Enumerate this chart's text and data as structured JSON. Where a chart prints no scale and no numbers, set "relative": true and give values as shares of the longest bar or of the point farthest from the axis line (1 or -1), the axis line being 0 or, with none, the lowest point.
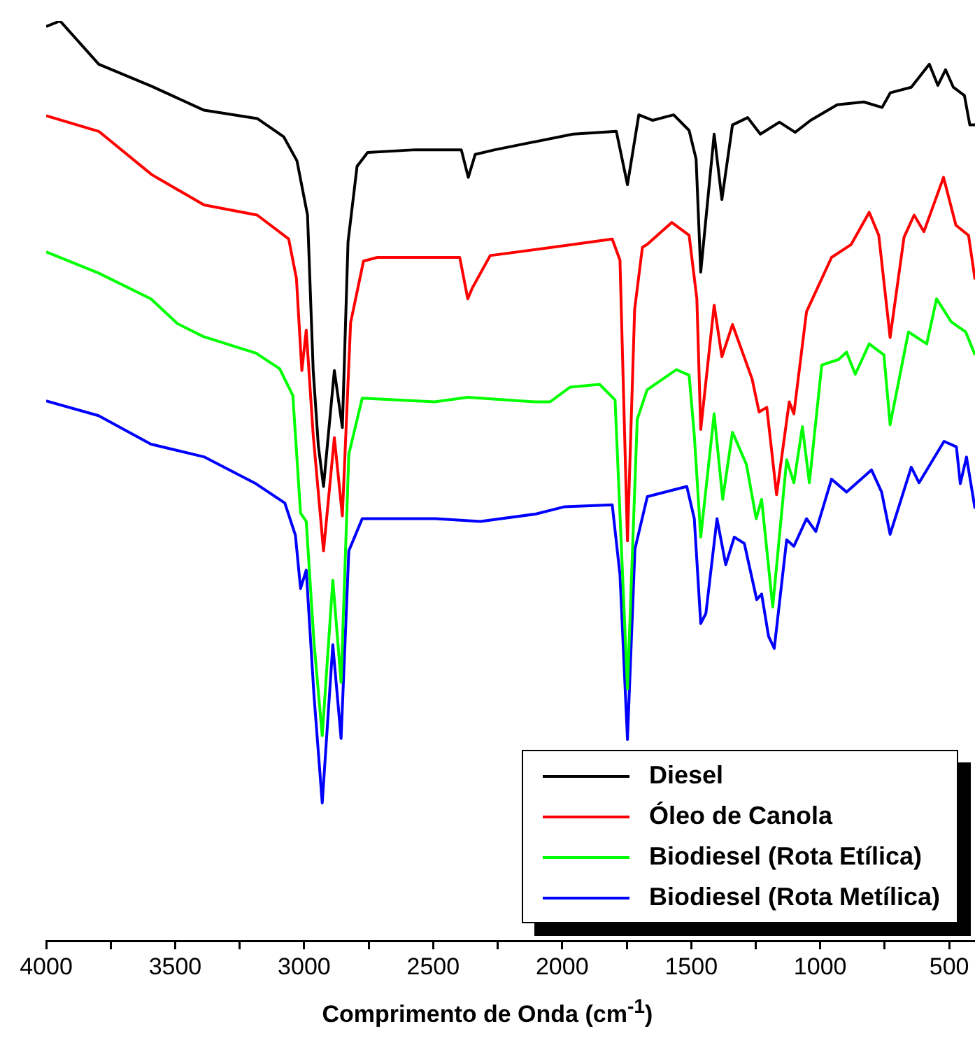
{
  "chart_data": {
    "type": "line",
    "xlabel": "Comprimento de Onda (cm$^{-1}$)",
    "relative": true,
    "legend": "bottom right",
    "tick_labels": "x",
    "xlim": [
      4000,
      400
    ],
    "xticks": [
      4000,
      {
        "value": 3750,
        "label": null
      },
      3500,
      {
        "value": 3250,
        "label": null
      },
      3000,
      {
        "value": 2750,
        "label": null
      },
      2500,
      {
        "value": 2250,
        "label": null
      },
      2000,
      {
        "value": 1750,
        "label": null
      },
      1500,
      {
        "value": 1250,
        "label": null
      },
      1000,
      {
        "value": 750,
        "label": null
      },
      500
    ],
    "series": [
      {
        "name": "Diesel",
        "color": "#000000",
        "x": [
          4000,
          3946,
          3796,
          3591,
          3388,
          3182,
          3079,
          3028,
          2987,
          2965,
          2945,
          2925,
          2883,
          2852,
          2830,
          2795,
          2754,
          2570,
          2391,
          2364,
          2337,
          2261,
          1958,
          1790,
          1747,
          1703,
          1649,
          1568,
          1508,
          1481,
          1463,
          1411,
          1381,
          1340,
          1281,
          1232,
          1158,
          1097,
          1037,
          934,
          831,
          760,
          728,
          647,
          577,
          544,
          514,
          484,
          441,
          420,
          400
        ],
        "values": [
          0.994,
          1.0,
          0.953,
          0.929,
          0.903,
          0.894,
          0.874,
          0.848,
          0.789,
          0.62,
          0.538,
          0.494,
          0.62,
          0.558,
          0.76,
          0.842,
          0.857,
          0.86,
          0.86,
          0.83,
          0.855,
          0.86,
          0.877,
          0.88,
          0.822,
          0.898,
          0.892,
          0.898,
          0.881,
          0.85,
          0.727,
          0.877,
          0.806,
          0.887,
          0.895,
          0.877,
          0.89,
          0.879,
          0.892,
          0.909,
          0.912,
          0.906,
          0.922,
          0.928,
          0.953,
          0.93,
          0.947,
          0.928,
          0.919,
          0.887,
          0.887
        ]
      },
      {
        "name": "Óleo de Canola",
        "color": "#ff0000",
        "x": [
          4000,
          3796,
          3591,
          3388,
          3182,
          3060,
          3030,
          3009,
          2992,
          2965,
          2925,
          2883,
          2852,
          2820,
          2770,
          2716,
          2397,
          2366,
          2348,
          2279,
          1958,
          1806,
          1776,
          1747,
          1719,
          1689,
          1671,
          1575,
          1508,
          1478,
          1463,
          1411,
          1381,
          1340,
          1264,
          1237,
          1207,
          1169,
          1120,
          1102,
          1053,
          956,
          880,
          810,
          773,
          729,
          675,
          636,
          598,
          522,
          474,
          425,
          400
        ],
        "values": [
          0.897,
          0.88,
          0.833,
          0.8,
          0.789,
          0.763,
          0.72,
          0.62,
          0.664,
          0.55,
          0.424,
          0.547,
          0.462,
          0.672,
          0.739,
          0.743,
          0.743,
          0.698,
          0.71,
          0.745,
          0.757,
          0.763,
          0.74,
          0.435,
          0.687,
          0.754,
          0.757,
          0.781,
          0.767,
          0.698,
          0.556,
          0.691,
          0.635,
          0.67,
          0.611,
          0.575,
          0.58,
          0.485,
          0.586,
          0.573,
          0.684,
          0.743,
          0.757,
          0.792,
          0.767,
          0.656,
          0.765,
          0.789,
          0.771,
          0.83,
          0.778,
          0.767,
          0.719
        ]
      },
      {
        "name": "Biodiesel (Rota Etílica)",
        "color": "#00ff00",
        "x": [
          4000,
          3797,
          3594,
          3491,
          3391,
          3187,
          3095,
          3044,
          3014,
          2992,
          2962,
          2930,
          2889,
          2857,
          2827,
          2775,
          2494,
          2366,
          2104,
          2047,
          1969,
          1855,
          1795,
          1747,
          1709,
          1671,
          1557,
          1508,
          1488,
          1463,
          1411,
          1378,
          1340,
          1286,
          1248,
          1227,
          1184,
          1130,
          1102,
          1069,
          1042,
          994,
          929,
          898,
          864,
          810,
          753,
          729,
          658,
          587,
          549,
          492,
          436,
          400
        ],
        "values": [
          0.749,
          0.726,
          0.698,
          0.671,
          0.657,
          0.639,
          0.622,
          0.593,
          0.465,
          0.456,
          0.325,
          0.223,
          0.392,
          0.281,
          0.529,
          0.59,
          0.586,
          0.591,
          0.586,
          0.586,
          0.602,
          0.605,
          0.588,
          0.274,
          0.567,
          0.599,
          0.621,
          0.615,
          0.55,
          0.439,
          0.573,
          0.48,
          0.553,
          0.518,
          0.459,
          0.48,
          0.363,
          0.523,
          0.498,
          0.559,
          0.498,
          0.626,
          0.632,
          0.64,
          0.616,
          0.649,
          0.637,
          0.561,
          0.662,
          0.649,
          0.698,
          0.673,
          0.662,
          0.637
        ]
      },
      {
        "name": "Biodiesel (Rota Metílica)",
        "color": "#0000ff",
        "x": [
          4000,
          3797,
          3594,
          3386,
          3187,
          3075,
          3034,
          3014,
          2992,
          2962,
          2930,
          2889,
          2857,
          2827,
          2775,
          2492,
          2317,
          2104,
          1990,
          1806,
          1776,
          1747,
          1718,
          1670,
          1517,
          1488,
          1463,
          1443,
          1400,
          1366,
          1333,
          1294,
          1246,
          1227,
          1200,
          1178,
          1130,
          1102,
          1053,
          1017,
          956,
          898,
          801,
          762,
          729,
          647,
          617,
          520,
          472,
          457,
          433,
          400
        ],
        "values": [
          0.587,
          0.571,
          0.54,
          0.526,
          0.497,
          0.476,
          0.441,
          0.383,
          0.403,
          0.267,
          0.15,
          0.322,
          0.22,
          0.424,
          0.459,
          0.459,
          0.456,
          0.464,
          0.472,
          0.474,
          0.398,
          0.219,
          0.426,
          0.483,
          0.494,
          0.459,
          0.345,
          0.356,
          0.459,
          0.409,
          0.439,
          0.432,
          0.371,
          0.377,
          0.331,
          0.318,
          0.436,
          0.429,
          0.459,
          0.445,
          0.502,
          0.488,
          0.512,
          0.488,
          0.442,
          0.515,
          0.498,
          0.543,
          0.537,
          0.497,
          0.526,
          0.47
        ]
      }
    ]
  }
}
